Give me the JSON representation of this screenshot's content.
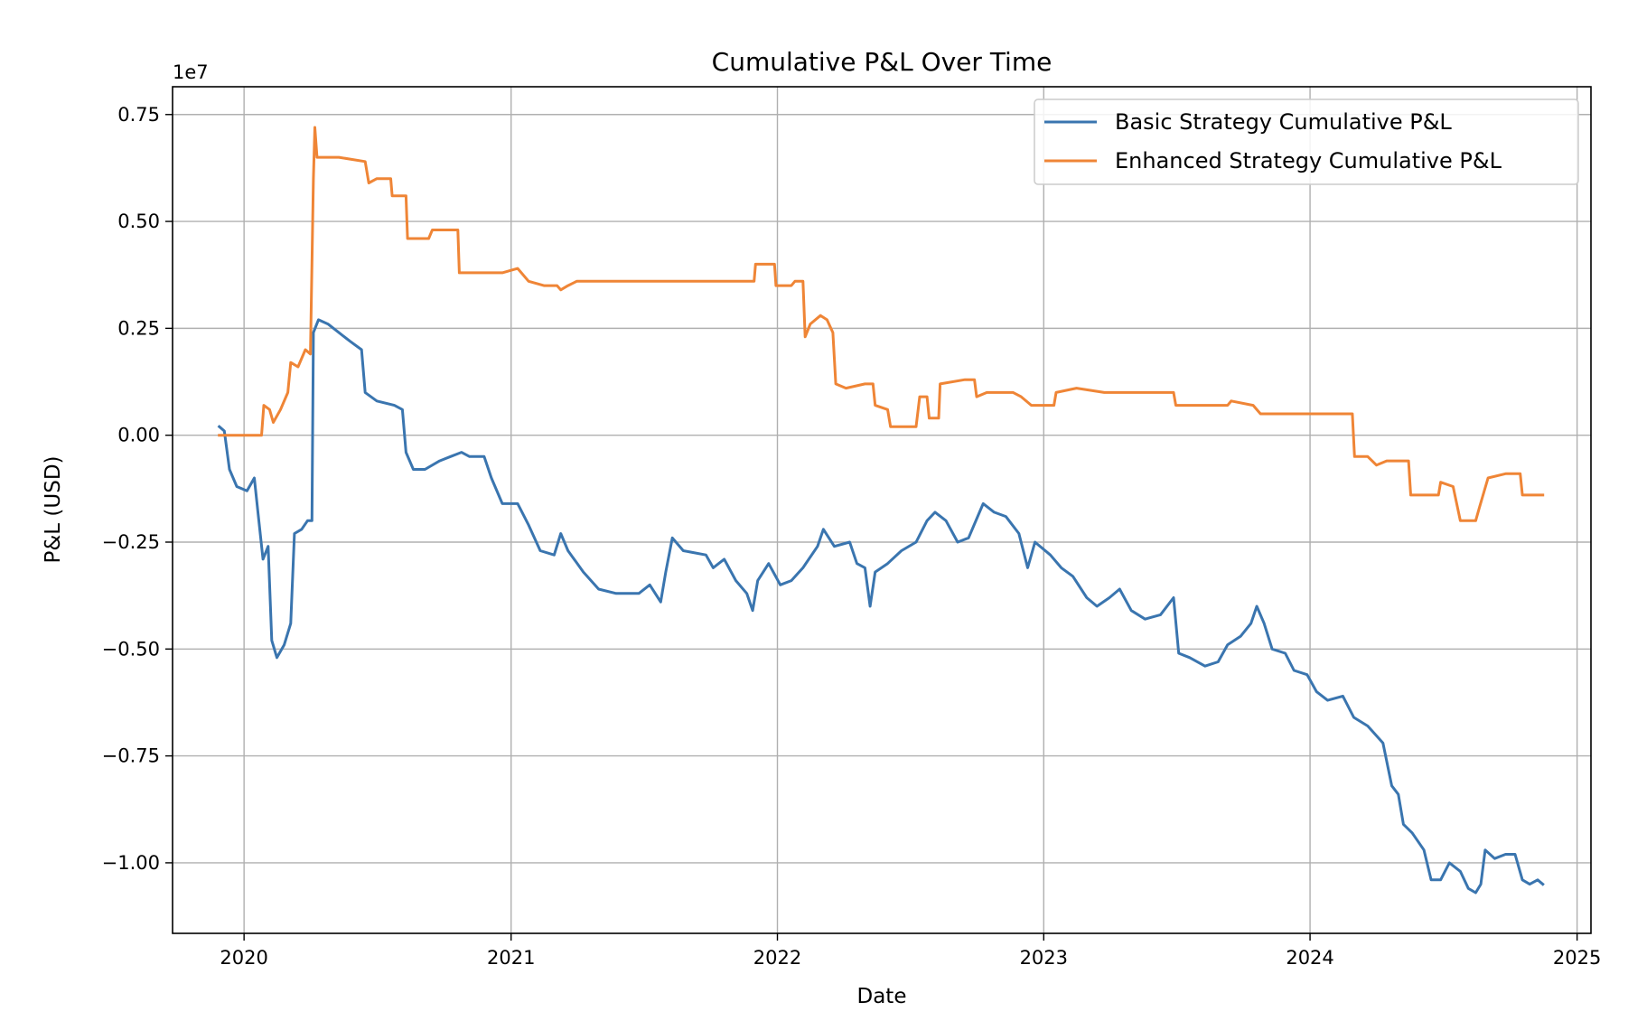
{
  "chart_data": {
    "type": "line",
    "title": "Cumulative P&L Over Time",
    "xlabel": "Date",
    "ylabel": "P&L (USD)",
    "y_offset_label": "1e7",
    "xlim": [
      "2019-09-25",
      "2025-01-20"
    ],
    "ylim": [
      -1.165,
      0.815
    ],
    "y_ticks": [
      0.75,
      0.5,
      0.25,
      0.0,
      -0.25,
      -0.5,
      -0.75,
      -1.0
    ],
    "y_tick_labels": [
      "0.75",
      "0.50",
      "0.25",
      "0.00",
      "−0.25",
      "−0.50",
      "−0.75",
      "−1.00"
    ],
    "x_ticks": [
      "2020-01-01",
      "2021-01-01",
      "2022-01-01",
      "2023-01-01",
      "2024-01-01",
      "2025-01-01"
    ],
    "x_tick_labels": [
      "2020",
      "2021",
      "2022",
      "2023",
      "2024",
      "2025"
    ],
    "grid": true,
    "legend_position": "top-right",
    "colors": {
      "basic": "#3a75af",
      "enhanced": "#ef8536",
      "grid": "#b0b0b0",
      "axes": "#000000"
    },
    "series": [
      {
        "name": "Basic Strategy Cumulative P&L",
        "color": "#3a75af",
        "points": [
          [
            "2019-11-28",
            0.02
          ],
          [
            "2019-12-05",
            0.01
          ],
          [
            "2019-12-12",
            -0.08
          ],
          [
            "2019-12-22",
            -0.12
          ],
          [
            "2020-01-05",
            -0.13
          ],
          [
            "2020-01-15",
            -0.1
          ],
          [
            "2020-01-20",
            -0.18
          ],
          [
            "2020-01-27",
            -0.29
          ],
          [
            "2020-02-03",
            -0.26
          ],
          [
            "2020-02-08",
            -0.48
          ],
          [
            "2020-02-15",
            -0.52
          ],
          [
            "2020-02-25",
            -0.49
          ],
          [
            "2020-03-05",
            -0.44
          ],
          [
            "2020-03-10",
            -0.23
          ],
          [
            "2020-03-20",
            -0.22
          ],
          [
            "2020-03-28",
            -0.2
          ],
          [
            "2020-04-03",
            -0.2
          ],
          [
            "2020-04-05",
            0.24
          ],
          [
            "2020-04-12",
            0.27
          ],
          [
            "2020-04-25",
            0.26
          ],
          [
            "2020-05-10",
            0.24
          ],
          [
            "2020-05-25",
            0.22
          ],
          [
            "2020-06-10",
            0.2
          ],
          [
            "2020-06-15",
            0.1
          ],
          [
            "2020-07-01",
            0.08
          ],
          [
            "2020-07-25",
            0.07
          ],
          [
            "2020-08-05",
            0.06
          ],
          [
            "2020-08-10",
            -0.04
          ],
          [
            "2020-08-20",
            -0.08
          ],
          [
            "2020-09-05",
            -0.08
          ],
          [
            "2020-09-25",
            -0.06
          ],
          [
            "2020-10-10",
            -0.05
          ],
          [
            "2020-10-25",
            -0.04
          ],
          [
            "2020-11-05",
            -0.05
          ],
          [
            "2020-11-25",
            -0.05
          ],
          [
            "2020-12-05",
            -0.1
          ],
          [
            "2020-12-20",
            -0.16
          ],
          [
            "2021-01-10",
            -0.16
          ],
          [
            "2021-01-25",
            -0.21
          ],
          [
            "2021-02-10",
            -0.27
          ],
          [
            "2021-03-01",
            -0.28
          ],
          [
            "2021-03-10",
            -0.23
          ],
          [
            "2021-03-20",
            -0.27
          ],
          [
            "2021-04-10",
            -0.32
          ],
          [
            "2021-05-01",
            -0.36
          ],
          [
            "2021-05-25",
            -0.37
          ],
          [
            "2021-06-25",
            -0.37
          ],
          [
            "2021-07-10",
            -0.35
          ],
          [
            "2021-07-25",
            -0.39
          ],
          [
            "2021-08-01",
            -0.32
          ],
          [
            "2021-08-10",
            -0.24
          ],
          [
            "2021-08-25",
            -0.27
          ],
          [
            "2021-09-25",
            -0.28
          ],
          [
            "2021-10-05",
            -0.31
          ],
          [
            "2021-10-20",
            -0.29
          ],
          [
            "2021-11-05",
            -0.34
          ],
          [
            "2021-11-20",
            -0.37
          ],
          [
            "2021-11-28",
            -0.41
          ],
          [
            "2021-12-05",
            -0.34
          ],
          [
            "2021-12-20",
            -0.3
          ],
          [
            "2022-01-05",
            -0.35
          ],
          [
            "2022-01-20",
            -0.34
          ],
          [
            "2022-02-05",
            -0.31
          ],
          [
            "2022-02-25",
            -0.26
          ],
          [
            "2022-03-05",
            -0.22
          ],
          [
            "2022-03-20",
            -0.26
          ],
          [
            "2022-04-10",
            -0.25
          ],
          [
            "2022-04-20",
            -0.3
          ],
          [
            "2022-05-01",
            -0.31
          ],
          [
            "2022-05-08",
            -0.4
          ],
          [
            "2022-05-15",
            -0.32
          ],
          [
            "2022-06-01",
            -0.3
          ],
          [
            "2022-06-20",
            -0.27
          ],
          [
            "2022-07-10",
            -0.25
          ],
          [
            "2022-07-25",
            -0.2
          ],
          [
            "2022-08-05",
            -0.18
          ],
          [
            "2022-08-20",
            -0.2
          ],
          [
            "2022-09-05",
            -0.25
          ],
          [
            "2022-09-20",
            -0.24
          ],
          [
            "2022-10-05",
            -0.18
          ],
          [
            "2022-10-10",
            -0.16
          ],
          [
            "2022-10-25",
            -0.18
          ],
          [
            "2022-11-10",
            -0.19
          ],
          [
            "2022-11-28",
            -0.23
          ],
          [
            "2022-12-10",
            -0.31
          ],
          [
            "2022-12-20",
            -0.25
          ],
          [
            "2023-01-10",
            -0.28
          ],
          [
            "2023-01-25",
            -0.31
          ],
          [
            "2023-02-10",
            -0.33
          ],
          [
            "2023-03-01",
            -0.38
          ],
          [
            "2023-03-15",
            -0.4
          ],
          [
            "2023-04-01",
            -0.38
          ],
          [
            "2023-04-15",
            -0.36
          ],
          [
            "2023-05-01",
            -0.41
          ],
          [
            "2023-05-20",
            -0.43
          ],
          [
            "2023-06-10",
            -0.42
          ],
          [
            "2023-06-28",
            -0.38
          ],
          [
            "2023-07-05",
            -0.51
          ],
          [
            "2023-07-20",
            -0.52
          ],
          [
            "2023-08-10",
            -0.54
          ],
          [
            "2023-08-28",
            -0.53
          ],
          [
            "2023-09-10",
            -0.49
          ],
          [
            "2023-09-28",
            -0.47
          ],
          [
            "2023-10-12",
            -0.44
          ],
          [
            "2023-10-20",
            -0.4
          ],
          [
            "2023-10-30",
            -0.44
          ],
          [
            "2023-11-10",
            -0.5
          ],
          [
            "2023-11-28",
            -0.51
          ],
          [
            "2023-12-10",
            -0.55
          ],
          [
            "2023-12-28",
            -0.56
          ],
          [
            "2024-01-10",
            -0.6
          ],
          [
            "2024-01-25",
            -0.62
          ],
          [
            "2024-02-15",
            -0.61
          ],
          [
            "2024-03-01",
            -0.66
          ],
          [
            "2024-03-20",
            -0.68
          ],
          [
            "2024-04-10",
            -0.72
          ],
          [
            "2024-04-22",
            -0.82
          ],
          [
            "2024-05-01",
            -0.84
          ],
          [
            "2024-05-08",
            -0.91
          ],
          [
            "2024-05-20",
            -0.93
          ],
          [
            "2024-06-05",
            -0.97
          ],
          [
            "2024-06-15",
            -1.04
          ],
          [
            "2024-06-28",
            -1.04
          ],
          [
            "2024-07-10",
            -1.0
          ],
          [
            "2024-07-25",
            -1.02
          ],
          [
            "2024-08-05",
            -1.06
          ],
          [
            "2024-08-15",
            -1.07
          ],
          [
            "2024-08-22",
            -1.05
          ],
          [
            "2024-08-28",
            -0.97
          ],
          [
            "2024-09-10",
            -0.99
          ],
          [
            "2024-09-25",
            -0.98
          ],
          [
            "2024-10-08",
            -0.98
          ],
          [
            "2024-10-18",
            -1.04
          ],
          [
            "2024-10-28",
            -1.05
          ],
          [
            "2024-11-08",
            -1.04
          ],
          [
            "2024-11-15",
            -1.05
          ]
        ]
      },
      {
        "name": "Enhanced Strategy Cumulative P&L",
        "color": "#ef8536",
        "points": [
          [
            "2019-11-28",
            0.0
          ],
          [
            "2020-01-25",
            0.0
          ],
          [
            "2020-01-28",
            0.07
          ],
          [
            "2020-02-05",
            0.06
          ],
          [
            "2020-02-10",
            0.03
          ],
          [
            "2020-02-20",
            0.06
          ],
          [
            "2020-03-01",
            0.1
          ],
          [
            "2020-03-05",
            0.17
          ],
          [
            "2020-03-15",
            0.16
          ],
          [
            "2020-03-25",
            0.2
          ],
          [
            "2020-04-01",
            0.19
          ],
          [
            "2020-04-05",
            0.6
          ],
          [
            "2020-04-07",
            0.72
          ],
          [
            "2020-04-10",
            0.65
          ],
          [
            "2020-05-10",
            0.65
          ],
          [
            "2020-06-15",
            0.64
          ],
          [
            "2020-06-20",
            0.59
          ],
          [
            "2020-07-01",
            0.6
          ],
          [
            "2020-07-20",
            0.6
          ],
          [
            "2020-07-22",
            0.56
          ],
          [
            "2020-08-10",
            0.56
          ],
          [
            "2020-08-12",
            0.46
          ],
          [
            "2020-09-10",
            0.46
          ],
          [
            "2020-09-15",
            0.48
          ],
          [
            "2020-10-20",
            0.48
          ],
          [
            "2020-10-22",
            0.38
          ],
          [
            "2020-11-20",
            0.38
          ],
          [
            "2020-11-25",
            0.38
          ],
          [
            "2020-12-20",
            0.38
          ],
          [
            "2021-01-10",
            0.39
          ],
          [
            "2021-01-25",
            0.36
          ],
          [
            "2021-02-15",
            0.35
          ],
          [
            "2021-03-05",
            0.35
          ],
          [
            "2021-03-10",
            0.34
          ],
          [
            "2021-03-20",
            0.35
          ],
          [
            "2021-04-01",
            0.36
          ],
          [
            "2021-11-30",
            0.36
          ],
          [
            "2021-12-02",
            0.4
          ],
          [
            "2021-12-28",
            0.4
          ],
          [
            "2021-12-30",
            0.35
          ],
          [
            "2022-01-20",
            0.35
          ],
          [
            "2022-01-25",
            0.36
          ],
          [
            "2022-02-05",
            0.36
          ],
          [
            "2022-02-08",
            0.23
          ],
          [
            "2022-02-15",
            0.26
          ],
          [
            "2022-03-01",
            0.28
          ],
          [
            "2022-03-10",
            0.27
          ],
          [
            "2022-03-18",
            0.24
          ],
          [
            "2022-03-22",
            0.12
          ],
          [
            "2022-04-05",
            0.11
          ],
          [
            "2022-05-01",
            0.12
          ],
          [
            "2022-05-12",
            0.12
          ],
          [
            "2022-05-15",
            0.07
          ],
          [
            "2022-06-01",
            0.06
          ],
          [
            "2022-06-05",
            0.02
          ],
          [
            "2022-07-10",
            0.02
          ],
          [
            "2022-07-15",
            0.09
          ],
          [
            "2022-07-25",
            0.09
          ],
          [
            "2022-07-28",
            0.04
          ],
          [
            "2022-08-10",
            0.04
          ],
          [
            "2022-08-12",
            0.12
          ],
          [
            "2022-09-15",
            0.13
          ],
          [
            "2022-09-28",
            0.13
          ],
          [
            "2022-10-01",
            0.09
          ],
          [
            "2022-10-15",
            0.1
          ],
          [
            "2022-11-20",
            0.1
          ],
          [
            "2022-12-01",
            0.09
          ],
          [
            "2022-12-15",
            0.07
          ],
          [
            "2023-01-15",
            0.07
          ],
          [
            "2023-01-18",
            0.1
          ],
          [
            "2023-02-15",
            0.11
          ],
          [
            "2023-03-25",
            0.1
          ],
          [
            "2023-04-15",
            0.1
          ],
          [
            "2023-06-28",
            0.1
          ],
          [
            "2023-07-01",
            0.07
          ],
          [
            "2023-09-10",
            0.07
          ],
          [
            "2023-09-15",
            0.08
          ],
          [
            "2023-10-15",
            0.07
          ],
          [
            "2023-10-25",
            0.05
          ],
          [
            "2024-02-28",
            0.05
          ],
          [
            "2024-03-02",
            -0.05
          ],
          [
            "2024-03-20",
            -0.05
          ],
          [
            "2024-04-01",
            -0.07
          ],
          [
            "2024-04-15",
            -0.06
          ],
          [
            "2024-05-15",
            -0.06
          ],
          [
            "2024-05-18",
            -0.14
          ],
          [
            "2024-06-25",
            -0.14
          ],
          [
            "2024-06-28",
            -0.11
          ],
          [
            "2024-07-15",
            -0.12
          ],
          [
            "2024-07-25",
            -0.2
          ],
          [
            "2024-08-15",
            -0.2
          ],
          [
            "2024-08-20",
            -0.17
          ],
          [
            "2024-09-01",
            -0.1
          ],
          [
            "2024-09-25",
            -0.09
          ],
          [
            "2024-10-15",
            -0.09
          ],
          [
            "2024-10-18",
            -0.14
          ],
          [
            "2024-11-15",
            -0.14
          ]
        ]
      }
    ]
  }
}
